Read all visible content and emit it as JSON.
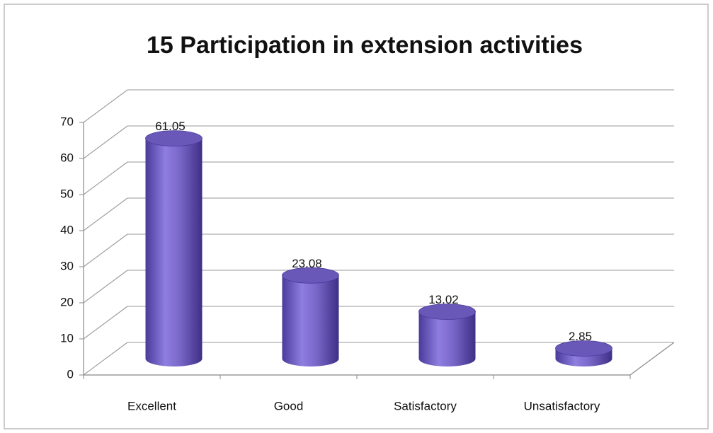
{
  "chart_data": {
    "type": "bar",
    "title": "15 Participation in extension activities",
    "categories": [
      "Excellent",
      "Good",
      "Satisfactory",
      "Unsatisfactory"
    ],
    "values": [
      61.05,
      23.08,
      13.02,
      2.85
    ],
    "color": "#7a68c9",
    "ylim": [
      0,
      70
    ],
    "yticks": [
      0,
      10,
      20,
      30,
      40,
      50,
      60,
      70
    ],
    "grid": true
  }
}
